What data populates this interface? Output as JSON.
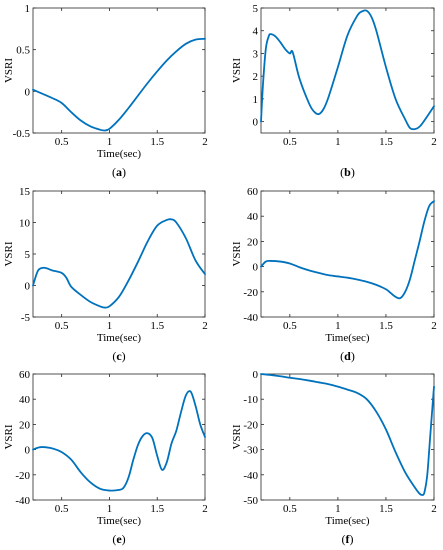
{
  "colors": {
    "line": "#0072BD",
    "axis": "#262626"
  },
  "chart_data": [
    {
      "type": "line",
      "caption": "(a)",
      "ylabel": "VSRI",
      "xlabel": "Time(sec)",
      "xlim": [
        0.2,
        2
      ],
      "ylim": [
        -0.5,
        1
      ],
      "xticks": [
        0.5,
        1,
        1.5,
        2
      ],
      "xtick_labels": [
        "0.5",
        "1",
        "1.5",
        "2"
      ],
      "yticks": [
        -0.5,
        0,
        0.5,
        1
      ],
      "ytick_labels": [
        "-0.5",
        "0",
        "0.5",
        "1"
      ],
      "grid": false,
      "x": [
        0.2,
        0.3,
        0.4,
        0.5,
        0.6,
        0.7,
        0.8,
        0.9,
        0.95,
        1.0,
        1.1,
        1.2,
        1.3,
        1.4,
        1.5,
        1.6,
        1.7,
        1.8,
        1.9,
        2.0
      ],
      "y": [
        0.02,
        -0.03,
        -0.08,
        -0.14,
        -0.25,
        -0.35,
        -0.42,
        -0.46,
        -0.47,
        -0.45,
        -0.34,
        -0.2,
        -0.05,
        0.1,
        0.24,
        0.37,
        0.48,
        0.57,
        0.62,
        0.63
      ]
    },
    {
      "type": "line",
      "caption": "(b)",
      "ylabel": "VSRI",
      "xlabel": "",
      "xlim": [
        0.2,
        2
      ],
      "ylim": [
        -0.5,
        5
      ],
      "xticks": [
        0.5,
        1,
        1.5,
        2
      ],
      "xtick_labels": [
        "0.5",
        "1",
        "1.5",
        "2"
      ],
      "yticks": [
        0,
        1,
        2,
        3,
        4,
        5
      ],
      "ytick_labels": [
        "0",
        "1",
        "2",
        "3",
        "4",
        "5"
      ],
      "grid": false,
      "x": [
        0.2,
        0.22,
        0.25,
        0.28,
        0.3,
        0.35,
        0.4,
        0.45,
        0.5,
        0.53,
        0.6,
        0.7,
        0.75,
        0.8,
        0.85,
        0.9,
        1.0,
        1.1,
        1.2,
        1.25,
        1.3,
        1.35,
        1.4,
        1.5,
        1.6,
        1.7,
        1.75,
        1.8,
        1.85,
        1.9,
        2.0
      ],
      "y": [
        0.0,
        1.6,
        3.2,
        3.75,
        3.85,
        3.75,
        3.5,
        3.2,
        3.0,
        3.05,
        1.9,
        0.8,
        0.45,
        0.33,
        0.55,
        1.05,
        2.4,
        3.8,
        4.65,
        4.85,
        4.88,
        4.6,
        4.0,
        2.4,
        1.0,
        0.1,
        -0.28,
        -0.33,
        -0.22,
        0.05,
        0.68
      ]
    },
    {
      "type": "line",
      "caption": "(c)",
      "ylabel": "VSRI",
      "xlabel": "Time(sec)",
      "xlim": [
        0.2,
        2
      ],
      "ylim": [
        -5,
        15
      ],
      "xticks": [
        0.5,
        1,
        1.5,
        2
      ],
      "xtick_labels": [
        "0.5",
        "1",
        "1.5",
        "2"
      ],
      "yticks": [
        -5,
        0,
        5,
        10,
        15
      ],
      "ytick_labels": [
        "-5",
        "0",
        "5",
        "10",
        "15"
      ],
      "grid": false,
      "x": [
        0.2,
        0.25,
        0.3,
        0.35,
        0.4,
        0.5,
        0.55,
        0.6,
        0.7,
        0.8,
        0.9,
        0.95,
        1.0,
        1.1,
        1.2,
        1.3,
        1.4,
        1.5,
        1.6,
        1.65,
        1.7,
        1.8,
        1.9,
        2.0
      ],
      "y": [
        0.0,
        2.3,
        2.8,
        2.7,
        2.4,
        2.0,
        1.2,
        -0.2,
        -1.5,
        -2.6,
        -3.3,
        -3.5,
        -3.3,
        -1.8,
        0.8,
        3.8,
        7.0,
        9.5,
        10.4,
        10.5,
        10.0,
        7.5,
        4.0,
        1.8
      ]
    },
    {
      "type": "line",
      "caption": "(d)",
      "ylabel": "VSRI",
      "xlabel": "Time(sec)",
      "xlim": [
        0.2,
        2
      ],
      "ylim": [
        -40,
        60
      ],
      "xticks": [
        0.5,
        1,
        1.5,
        2
      ],
      "xtick_labels": [
        "0.5",
        "1",
        "1.5",
        "2"
      ],
      "yticks": [
        -40,
        -20,
        0,
        20,
        40,
        60
      ],
      "ytick_labels": [
        "-40",
        "-20",
        "0",
        "20",
        "40",
        "60"
      ],
      "grid": false,
      "x": [
        0.2,
        0.25,
        0.3,
        0.4,
        0.5,
        0.6,
        0.7,
        0.8,
        0.9,
        1.0,
        1.1,
        1.2,
        1.3,
        1.4,
        1.5,
        1.55,
        1.6,
        1.65,
        1.7,
        1.75,
        1.8,
        1.85,
        1.9,
        1.95,
        2.0
      ],
      "y": [
        0.0,
        4.0,
        4.5,
        4.0,
        2.5,
        -0.5,
        -3.0,
        -5.0,
        -6.8,
        -7.8,
        -8.8,
        -10.2,
        -12.0,
        -14.5,
        -18.0,
        -21.0,
        -24.0,
        -25.0,
        -20.0,
        -10.0,
        5.0,
        20.0,
        36.0,
        48.0,
        52.0
      ]
    },
    {
      "type": "line",
      "caption": "(e)",
      "ylabel": "VSRI",
      "xlabel": "Time(sec)",
      "xlim": [
        0.2,
        2
      ],
      "ylim": [
        -40,
        60
      ],
      "xticks": [
        0.5,
        1,
        1.5,
        2
      ],
      "xtick_labels": [
        "0.5",
        "1",
        "1.5",
        "2"
      ],
      "yticks": [
        -40,
        -20,
        0,
        20,
        40,
        60
      ],
      "ytick_labels": [
        "-40",
        "-20",
        "0",
        "20",
        "40",
        "60"
      ],
      "grid": false,
      "x": [
        0.2,
        0.25,
        0.3,
        0.4,
        0.5,
        0.6,
        0.7,
        0.8,
        0.9,
        1.0,
        1.1,
        1.15,
        1.2,
        1.25,
        1.3,
        1.35,
        1.4,
        1.45,
        1.5,
        1.55,
        1.6,
        1.65,
        1.7,
        1.75,
        1.8,
        1.85,
        1.9,
        1.95,
        2.0
      ],
      "y": [
        0.0,
        1.5,
        2.0,
        1.0,
        -2.0,
        -8.0,
        -18.0,
        -26.0,
        -31.0,
        -32.5,
        -32.0,
        -30.0,
        -22.0,
        -8.0,
        4.0,
        11.0,
        13.0,
        9.0,
        -5.0,
        -16.0,
        -10.0,
        5.0,
        15.0,
        30.0,
        43.0,
        46.0,
        35.0,
        20.0,
        10.0
      ]
    },
    {
      "type": "line",
      "caption": "(f)",
      "ylabel": "VSRI",
      "xlabel": "Time(sec)",
      "xlim": [
        0.2,
        2
      ],
      "ylim": [
        -50,
        0
      ],
      "xticks": [
        0.5,
        1,
        1.5,
        2
      ],
      "xtick_labels": [
        "0.5",
        "1",
        "1.5",
        "2"
      ],
      "yticks": [
        -50,
        -40,
        -30,
        -20,
        -10,
        0
      ],
      "ytick_labels": [
        "-50",
        "-40",
        "-30",
        "-20",
        "-10",
        "0"
      ],
      "grid": false,
      "x": [
        0.2,
        0.3,
        0.4,
        0.5,
        0.6,
        0.7,
        0.8,
        0.9,
        1.0,
        1.1,
        1.2,
        1.3,
        1.4,
        1.5,
        1.6,
        1.7,
        1.8,
        1.85,
        1.88,
        1.9,
        1.93,
        1.96,
        2.0
      ],
      "y": [
        0.0,
        -0.4,
        -0.9,
        -1.5,
        -2.0,
        -2.6,
        -3.3,
        -4.0,
        -5.0,
        -6.2,
        -7.5,
        -10.0,
        -15.0,
        -22.0,
        -31.0,
        -39.0,
        -45.0,
        -47.5,
        -48.0,
        -47.0,
        -40.0,
        -25.0,
        -5.0
      ]
    }
  ]
}
